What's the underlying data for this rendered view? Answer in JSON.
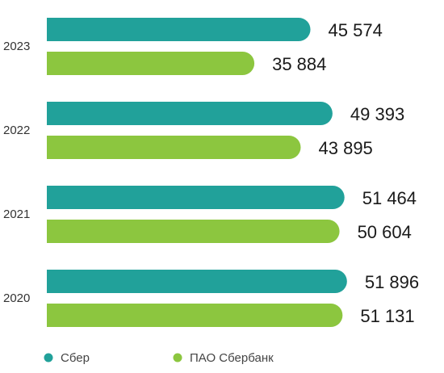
{
  "colors": {
    "sber": "#21a19a",
    "pao": "#8cc63f"
  },
  "chart_data": {
    "type": "bar",
    "orientation": "horizontal",
    "categories": [
      "2023",
      "2022",
      "2021",
      "2020"
    ],
    "series": [
      {
        "name": "Сбер",
        "values": [
          45574,
          49393,
          51464,
          51896
        ],
        "labels": [
          "45 574",
          "49 393",
          "51 464",
          "51 896"
        ]
      },
      {
        "name": "ПАО Сбербанк",
        "values": [
          35884,
          43895,
          50604,
          51131
        ],
        "labels": [
          "35 884",
          "43 895",
          "50 604",
          "51 131"
        ]
      }
    ],
    "grid": false,
    "legend": "bottom-left"
  }
}
